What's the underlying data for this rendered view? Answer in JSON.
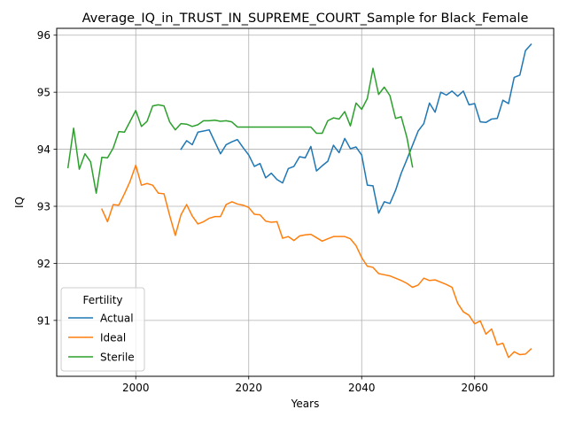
{
  "chart_data": {
    "type": "line",
    "title": "Average_IQ_in_TRUST_IN_SUPREME_COURT_Sample for Black_Female",
    "xlabel": "Years",
    "ylabel": "IQ",
    "xlim": [
      1986,
      2074
    ],
    "ylim": [
      90.02,
      96.12
    ],
    "xticks": [
      2000,
      2020,
      2040,
      2060
    ],
    "yticks": [
      91,
      92,
      93,
      94,
      95,
      96
    ],
    "grid": true,
    "legend": {
      "title": "Fertility",
      "placement": "lower-left"
    },
    "colors": {
      "Actual": "#1f77b4",
      "Ideal": "#ff7f0e",
      "Sterile": "#2ca02c"
    },
    "series": [
      {
        "name": "Actual",
        "x": [
          2008,
          2009,
          2010,
          2011,
          2012,
          2013,
          2014,
          2015,
          2016,
          2017,
          2018,
          2019,
          2020,
          2021,
          2022,
          2023,
          2024,
          2025,
          2026,
          2027,
          2028,
          2029,
          2030,
          2031,
          2032,
          2033,
          2034,
          2035,
          2036,
          2037,
          2038,
          2039,
          2040,
          2041,
          2042,
          2043,
          2044,
          2045,
          2046,
          2047,
          2048,
          2049,
          2050,
          2051,
          2052,
          2053,
          2054,
          2055,
          2056,
          2057,
          2058,
          2059,
          2060,
          2061,
          2062,
          2063,
          2064,
          2065,
          2066,
          2067,
          2068,
          2069,
          2070
        ],
        "values": [
          94.0,
          94.15,
          94.08,
          94.3,
          94.32,
          94.34,
          94.13,
          93.92,
          94.08,
          94.13,
          94.17,
          94.03,
          93.9,
          93.7,
          93.75,
          93.5,
          93.58,
          93.47,
          93.41,
          93.66,
          93.7,
          93.87,
          93.85,
          94.05,
          93.62,
          93.71,
          93.79,
          94.07,
          93.94,
          94.19,
          94.01,
          94.04,
          93.9,
          93.37,
          93.36,
          92.88,
          93.08,
          93.05,
          93.28,
          93.58,
          93.82,
          94.07,
          94.32,
          94.45,
          94.81,
          94.65,
          95.0,
          94.95,
          95.02,
          94.93,
          95.02,
          94.78,
          94.8,
          94.48,
          94.47,
          94.53,
          94.54,
          94.86,
          94.8,
          95.26,
          95.3,
          95.73,
          95.84
        ]
      },
      {
        "name": "Ideal",
        "x": [
          1994,
          1995,
          1996,
          1997,
          1998,
          1999,
          2000,
          2001,
          2002,
          2003,
          2004,
          2005,
          2006,
          2007,
          2008,
          2009,
          2010,
          2011,
          2012,
          2013,
          2014,
          2015,
          2016,
          2017,
          2018,
          2019,
          2020,
          2021,
          2022,
          2023,
          2024,
          2025,
          2026,
          2027,
          2028,
          2029,
          2030,
          2031,
          2032,
          2033,
          2034,
          2035,
          2036,
          2037,
          2038,
          2039,
          2040,
          2041,
          2042,
          2043,
          2044,
          2045,
          2046,
          2047,
          2048,
          2049,
          2050,
          2051,
          2052,
          2053,
          2054,
          2055,
          2056,
          2057,
          2058,
          2059,
          2060,
          2061,
          2062,
          2063,
          2064,
          2065,
          2066,
          2067,
          2068,
          2069,
          2070
        ],
        "values": [
          92.95,
          92.73,
          93.03,
          93.02,
          93.22,
          93.44,
          93.72,
          93.37,
          93.4,
          93.37,
          93.23,
          93.22,
          92.84,
          92.49,
          92.85,
          93.03,
          92.83,
          92.69,
          92.73,
          92.79,
          92.82,
          92.82,
          93.03,
          93.08,
          93.04,
          93.02,
          92.98,
          92.86,
          92.85,
          92.74,
          92.72,
          92.73,
          92.44,
          92.47,
          92.4,
          92.48,
          92.5,
          92.51,
          92.45,
          92.39,
          92.43,
          92.47,
          92.47,
          92.47,
          92.43,
          92.31,
          92.1,
          91.95,
          91.93,
          91.82,
          91.8,
          91.78,
          91.74,
          91.7,
          91.65,
          91.58,
          91.62,
          91.74,
          91.7,
          91.71,
          91.67,
          91.63,
          91.58,
          91.3,
          91.15,
          91.09,
          90.94,
          90.99,
          90.76,
          90.85,
          90.57,
          90.6,
          90.35,
          90.45,
          90.4,
          90.41,
          90.5
        ]
      },
      {
        "name": "Sterile",
        "x": [
          1988,
          1989,
          1990,
          1991,
          1992,
          1993,
          1994,
          1995,
          1996,
          1997,
          1998,
          1999,
          2000,
          2001,
          2002,
          2003,
          2004,
          2005,
          2006,
          2007,
          2008,
          2009,
          2010,
          2011,
          2012,
          2013,
          2014,
          2015,
          2016,
          2017,
          2018,
          2019,
          2020,
          2021,
          2022,
          2023,
          2024,
          2025,
          2026,
          2027,
          2028,
          2029,
          2030,
          2031,
          2032,
          2033,
          2034,
          2035,
          2036,
          2037,
          2038,
          2039,
          2040,
          2041,
          2042,
          2043,
          2044,
          2045,
          2046,
          2047,
          2048,
          2049
        ],
        "values": [
          93.68,
          94.37,
          93.65,
          93.92,
          93.78,
          93.23,
          93.86,
          93.85,
          94.02,
          94.31,
          94.3,
          94.49,
          94.68,
          94.4,
          94.49,
          94.76,
          94.78,
          94.76,
          94.48,
          94.34,
          94.45,
          94.44,
          94.4,
          94.43,
          94.5,
          94.5,
          94.51,
          94.49,
          94.5,
          94.48,
          94.39,
          94.39,
          94.39,
          94.39,
          94.39,
          94.39,
          94.39,
          94.39,
          94.39,
          94.39,
          94.39,
          94.39,
          94.39,
          94.39,
          94.28,
          94.28,
          94.5,
          94.55,
          94.53,
          94.66,
          94.41,
          94.81,
          94.7,
          94.89,
          95.42,
          94.96,
          95.09,
          94.94,
          94.54,
          94.57,
          94.21,
          93.69
        ]
      }
    ]
  }
}
